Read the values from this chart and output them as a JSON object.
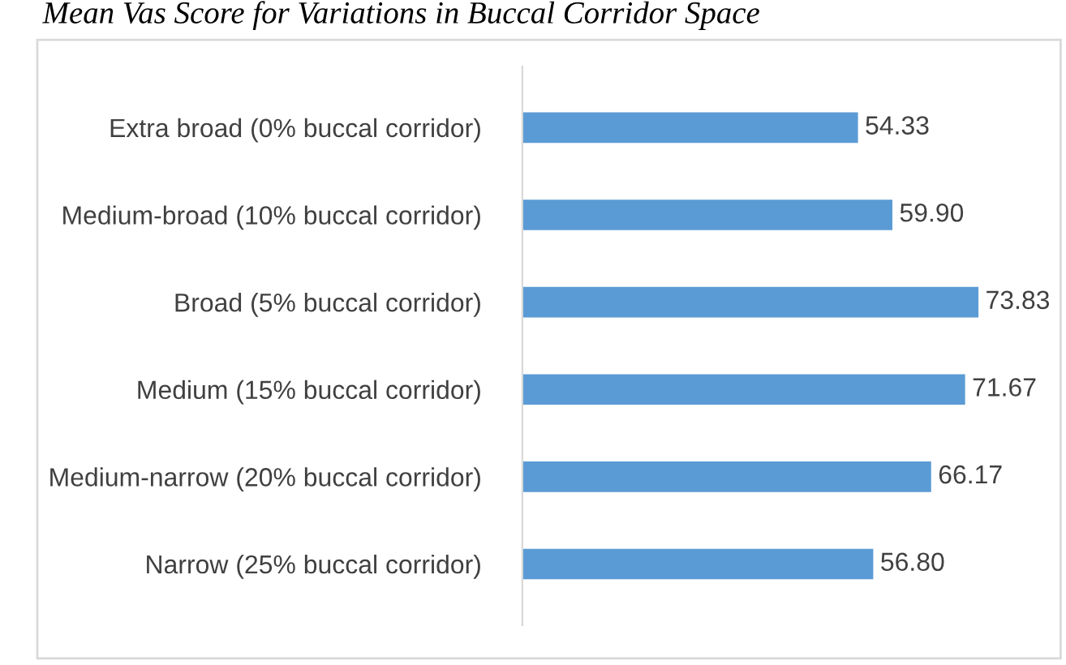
{
  "chart_data": {
    "type": "bar",
    "orientation": "horizontal",
    "title": "Mean Vas Score for Variations in Buccal Corridor Space",
    "categories": [
      "Extra broad (0% buccal corridor)",
      "Medium-broad (10% buccal corridor)",
      "Broad (5% buccal corridor)",
      "Medium (15% buccal corridor)",
      "Medium-narrow (20% buccal corridor)",
      "Narrow (25% buccal corridor)"
    ],
    "values": [
      54.33,
      59.9,
      73.83,
      71.67,
      66.17,
      56.8
    ],
    "value_labels": [
      "54.33",
      "59.90",
      "73.83",
      "71.67",
      "66.17",
      "56.80"
    ],
    "color": "#5b9bd5"
  }
}
